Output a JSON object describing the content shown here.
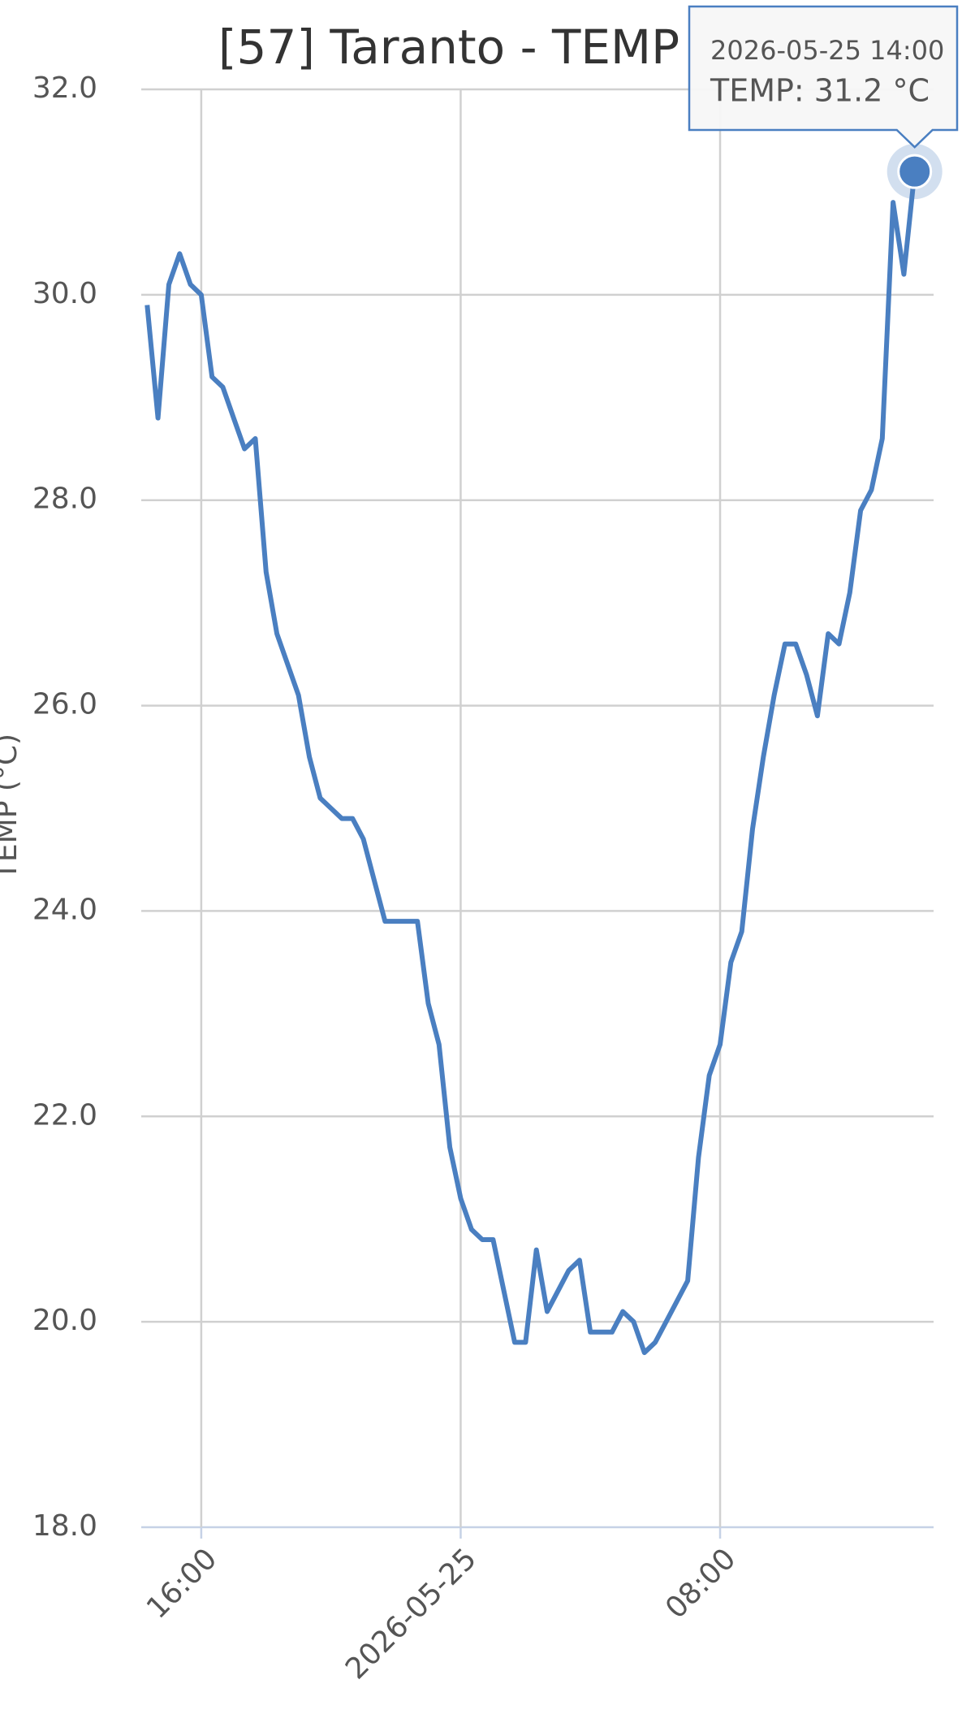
{
  "chart_data": {
    "type": "line",
    "title": "[57] Taranto - TEMP",
    "y_label": "TEMP (°C)",
    "x": [
      "2026-05-24 14:20",
      "2026-05-24 14:40",
      "2026-05-24 15:00",
      "2026-05-24 15:20",
      "2026-05-24 15:40",
      "2026-05-24 16:00",
      "2026-05-24 16:20",
      "2026-05-24 16:40",
      "2026-05-24 17:00",
      "2026-05-24 17:20",
      "2026-05-24 17:40",
      "2026-05-24 18:00",
      "2026-05-24 18:20",
      "2026-05-24 18:40",
      "2026-05-24 19:00",
      "2026-05-24 19:20",
      "2026-05-24 19:40",
      "2026-05-24 20:00",
      "2026-05-24 20:20",
      "2026-05-24 20:40",
      "2026-05-24 21:00",
      "2026-05-24 21:20",
      "2026-05-24 21:40",
      "2026-05-24 22:00",
      "2026-05-24 22:20",
      "2026-05-24 22:40",
      "2026-05-24 23:00",
      "2026-05-24 23:20",
      "2026-05-24 23:40",
      "2026-05-25 00:00",
      "2026-05-25 00:20",
      "2026-05-25 00:40",
      "2026-05-25 01:00",
      "2026-05-25 01:20",
      "2026-05-25 01:40",
      "2026-05-25 02:00",
      "2026-05-25 02:20",
      "2026-05-25 02:40",
      "2026-05-25 03:00",
      "2026-05-25 03:20",
      "2026-05-25 03:40",
      "2026-05-25 04:00",
      "2026-05-25 04:20",
      "2026-05-25 04:40",
      "2026-05-25 05:00",
      "2026-05-25 05:20",
      "2026-05-25 05:40",
      "2026-05-25 06:00",
      "2026-05-25 06:20",
      "2026-05-25 06:40",
      "2026-05-25 07:00",
      "2026-05-25 07:20",
      "2026-05-25 07:40",
      "2026-05-25 08:00",
      "2026-05-25 08:20",
      "2026-05-25 08:40",
      "2026-05-25 09:00",
      "2026-05-25 09:20",
      "2026-05-25 09:40",
      "2026-05-25 10:00",
      "2026-05-25 10:20",
      "2026-05-25 10:40",
      "2026-05-25 11:00",
      "2026-05-25 11:20",
      "2026-05-25 11:40",
      "2026-05-25 12:00",
      "2026-05-25 12:20",
      "2026-05-25 12:40",
      "2026-05-25 13:00",
      "2026-05-25 13:20",
      "2026-05-25 13:40",
      "2026-05-25 14:00"
    ],
    "series": [
      {
        "color": "#4a7fc1",
        "values": [
          29.9,
          28.8,
          30.1,
          30.4,
          30.1,
          30.0,
          29.2,
          29.1,
          28.8,
          28.5,
          28.6,
          27.3,
          26.7,
          26.4,
          26.1,
          25.5,
          25.1,
          25.0,
          24.9,
          24.9,
          24.7,
          24.3,
          23.9,
          23.9,
          23.9,
          23.9,
          23.1,
          22.7,
          21.7,
          21.2,
          20.9,
          20.8,
          20.8,
          20.3,
          19.8,
          19.8,
          20.7,
          20.1,
          20.3,
          20.5,
          20.6,
          19.9,
          19.9,
          19.9,
          20.1,
          20.0,
          19.7,
          19.8,
          20.0,
          20.2,
          20.4,
          21.6,
          22.4,
          22.7,
          23.5,
          23.8,
          24.8,
          25.5,
          26.1,
          26.6,
          26.6,
          26.3,
          25.9,
          26.7,
          26.6,
          27.1,
          27.9,
          28.1,
          28.6,
          30.9,
          30.2,
          31.2
        ]
      }
    ],
    "xlim": [
      "2026-05-24 14:09",
      "2026-05-25 14:35"
    ],
    "xticks": [
      {
        "value": "2026-05-24 16:00",
        "label": "16:00"
      },
      {
        "value": "2026-05-25 00:00",
        "label": "2026-05-25"
      },
      {
        "value": "2026-05-25 08:00",
        "label": "08:00"
      }
    ],
    "ylim": [
      18,
      32
    ],
    "yticks": [
      {
        "value": 18,
        "label": "18.0"
      },
      {
        "value": 20,
        "label": "20.0"
      },
      {
        "value": 22,
        "label": "22.0"
      },
      {
        "value": 24,
        "label": "24.0"
      },
      {
        "value": 26,
        "label": "26.0"
      },
      {
        "value": 28,
        "label": "28.0"
      },
      {
        "value": 30,
        "label": "30.0"
      },
      {
        "value": 32,
        "label": "32.0"
      }
    ],
    "grid": true,
    "tooltip": {
      "title": "2026-05-25 14:00",
      "text": "TEMP: 31.2 °C"
    }
  }
}
